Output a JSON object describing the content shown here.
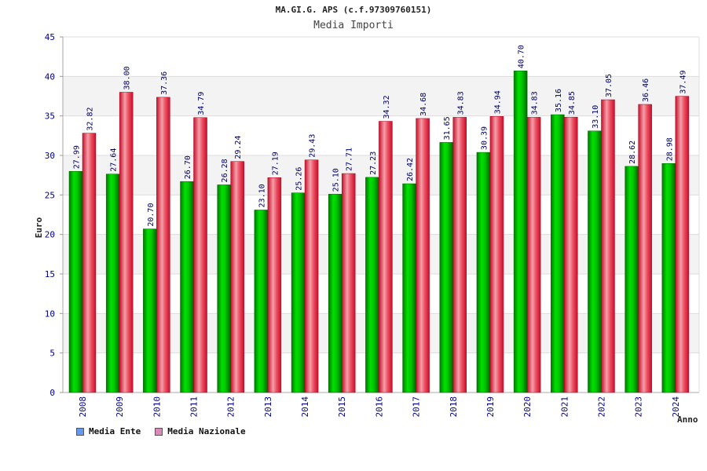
{
  "chart_data": {
    "type": "bar",
    "title": "MA.GI.G. APS (c.f.97309760151)",
    "subtitle": "Media Importi",
    "xlabel": "Anno",
    "ylabel": "Euro",
    "ylim": [
      0,
      45
    ],
    "yticks": [
      "0",
      "5",
      "10",
      "15",
      "20",
      "25",
      "30",
      "35",
      "40",
      "45"
    ],
    "categories": [
      "2008",
      "2009",
      "2010",
      "2011",
      "2012",
      "2013",
      "2014",
      "2015",
      "2016",
      "2017",
      "2018",
      "2019",
      "2020",
      "2021",
      "2022",
      "2023",
      "2024"
    ],
    "series": [
      {
        "name": "Media Ente",
        "color": "#00b000",
        "legend_color": "#6699ee",
        "values": [
          27.99,
          27.64,
          20.7,
          26.7,
          26.28,
          23.1,
          25.26,
          25.1,
          27.23,
          26.42,
          31.65,
          30.39,
          40.7,
          35.16,
          33.1,
          28.62,
          28.98
        ],
        "labels": [
          "27.99",
          "27.64",
          "20.70",
          "26.70",
          "26.28",
          "23.10",
          "25.26",
          "25.10",
          "27.23",
          "26.42",
          "31.65",
          "30.39",
          "40.70",
          "35.16",
          "33.10",
          "28.62",
          "28.98"
        ]
      },
      {
        "name": "Media Nazionale",
        "color": "#e8283c",
        "legend_color": "#dd88bb",
        "values": [
          32.82,
          38.0,
          37.36,
          34.79,
          29.24,
          27.19,
          29.43,
          27.71,
          34.32,
          34.68,
          34.83,
          34.94,
          34.83,
          34.85,
          37.05,
          36.46,
          37.49
        ],
        "labels": [
          "32.82",
          "38.00",
          "37.36",
          "34.79",
          "29.24",
          "27.19",
          "29.43",
          "27.71",
          "34.32",
          "34.68",
          "34.83",
          "34.94",
          "34.83",
          "34.85",
          "37.05",
          "36.46",
          "37.49"
        ]
      }
    ],
    "grid": true,
    "legend_position": "bottom-left"
  }
}
